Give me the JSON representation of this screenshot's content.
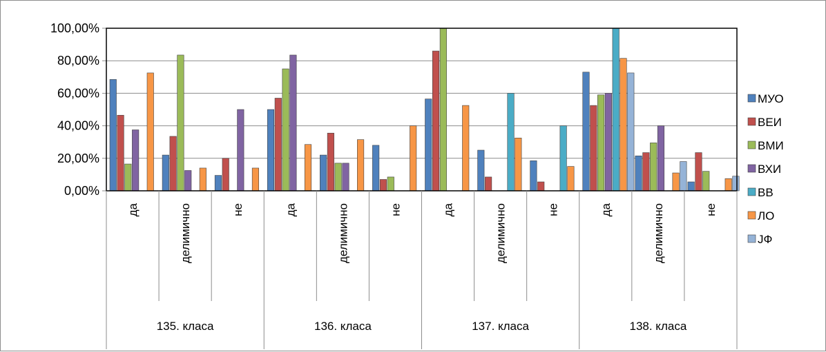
{
  "chart_data": {
    "type": "bar",
    "y_tick_labels": [
      "0,00%",
      "20,00%",
      "40,00%",
      "60,00%",
      "80,00%",
      "100,00%"
    ],
    "ylim": [
      0,
      100
    ],
    "grid": true,
    "legend_position": "right",
    "groups": [
      {
        "label": "135. класа",
        "subcategories": [
          "да",
          "делимично",
          "не"
        ]
      },
      {
        "label": "136. класа",
        "subcategories": [
          "да",
          "делимично",
          "не"
        ]
      },
      {
        "label": "137. класа",
        "subcategories": [
          "да",
          "делимично",
          "не"
        ]
      },
      {
        "label": "138. класа",
        "subcategories": [
          "да",
          "делимично",
          "не"
        ]
      }
    ],
    "categories": [
      "135. класа | да",
      "135. класа | делимично",
      "135. класа | не",
      "136. класа | да",
      "136. класа | делимично",
      "136. класа | не",
      "137. класа | да",
      "137. класа | делимично",
      "137. класа | не",
      "138. класа | да",
      "138. класа | делимично",
      "138. класа | не"
    ],
    "series": [
      {
        "name": "МУО",
        "color": "#4f81bd",
        "values": [
          68.5,
          22,
          9.5,
          50,
          22,
          28,
          56.5,
          25,
          18.5,
          73,
          21.5,
          5.5
        ]
      },
      {
        "name": "ВЕИ",
        "color": "#c0504d",
        "values": [
          46.5,
          33.5,
          20,
          57,
          35.5,
          7,
          86,
          8.5,
          5.5,
          52.5,
          23.5,
          23.5
        ]
      },
      {
        "name": "ВМИ",
        "color": "#9bbb59",
        "values": [
          16.5,
          83.5,
          0,
          75,
          17,
          8.5,
          100,
          0,
          0,
          59,
          29.5,
          12
        ]
      },
      {
        "name": "ВХИ",
        "color": "#8064a2",
        "values": [
          37.5,
          12.5,
          50,
          83.5,
          17,
          0,
          0,
          0,
          0,
          60,
          40,
          0
        ]
      },
      {
        "name": "ВВ",
        "color": "#4bacc6",
        "values": [
          0,
          0,
          0,
          0,
          0,
          0,
          0,
          60,
          40,
          100,
          0,
          0
        ]
      },
      {
        "name": "ЛО",
        "color": "#f79646",
        "values": [
          72.5,
          14,
          14,
          28.5,
          31.5,
          40,
          52.5,
          32.5,
          15,
          81.5,
          11,
          7.5
        ]
      },
      {
        "name": "ЈФ",
        "color": "#95b3d7",
        "values": [
          0,
          0,
          0,
          0,
          0,
          0,
          0,
          0,
          0,
          72.5,
          18,
          9
        ]
      }
    ]
  }
}
